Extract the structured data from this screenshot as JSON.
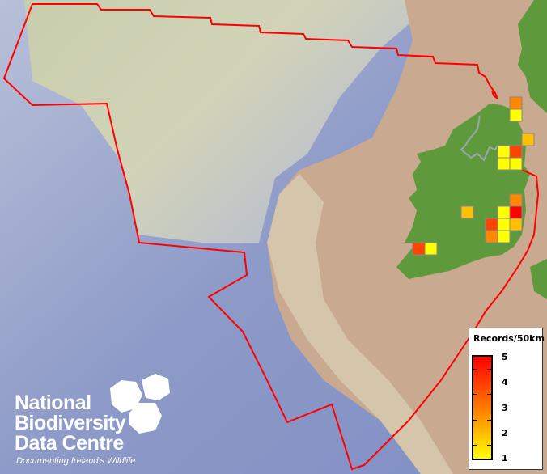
{
  "legend": {
    "title": "Records/50km",
    "ticks": [
      "5",
      "4",
      "3",
      "2",
      "1"
    ],
    "ramp_colors": [
      "#ffff00",
      "#ff7a00",
      "#ff0000"
    ]
  },
  "logo": {
    "line1": "National",
    "line2": "Biodiversity",
    "line3": "Data Centre",
    "tagline": "Documenting Ireland's Wildlife"
  },
  "colors": {
    "boundary": "#ff0000",
    "land": "#5e9a3c",
    "sea_deep": "#8e9bc8",
    "shelf": "#c9a98f",
    "cell_border": "#888888"
  },
  "grid_cells": [
    {
      "col": 8,
      "row": 0,
      "records": 3
    },
    {
      "col": 8,
      "row": 1,
      "records": 1
    },
    {
      "col": 9,
      "row": 3,
      "records": 2
    },
    {
      "col": 7,
      "row": 4,
      "records": 1
    },
    {
      "col": 8,
      "row": 4,
      "records": 4
    },
    {
      "col": 7,
      "row": 5,
      "records": 1
    },
    {
      "col": 8,
      "row": 5,
      "records": 1
    },
    {
      "col": 8,
      "row": 8,
      "records": 3
    },
    {
      "col": 4,
      "row": 9,
      "records": 2
    },
    {
      "col": 7,
      "row": 9,
      "records": 1
    },
    {
      "col": 8,
      "row": 9,
      "records": 5
    },
    {
      "col": 6,
      "row": 10,
      "records": 4
    },
    {
      "col": 7,
      "row": 10,
      "records": 1
    },
    {
      "col": 8,
      "row": 10,
      "records": 2
    },
    {
      "col": 6,
      "row": 11,
      "records": 3
    },
    {
      "col": 7,
      "row": 11,
      "records": 1
    },
    {
      "col": 0,
      "row": 12,
      "records": 4
    },
    {
      "col": 1,
      "row": 12,
      "records": 1
    }
  ]
}
